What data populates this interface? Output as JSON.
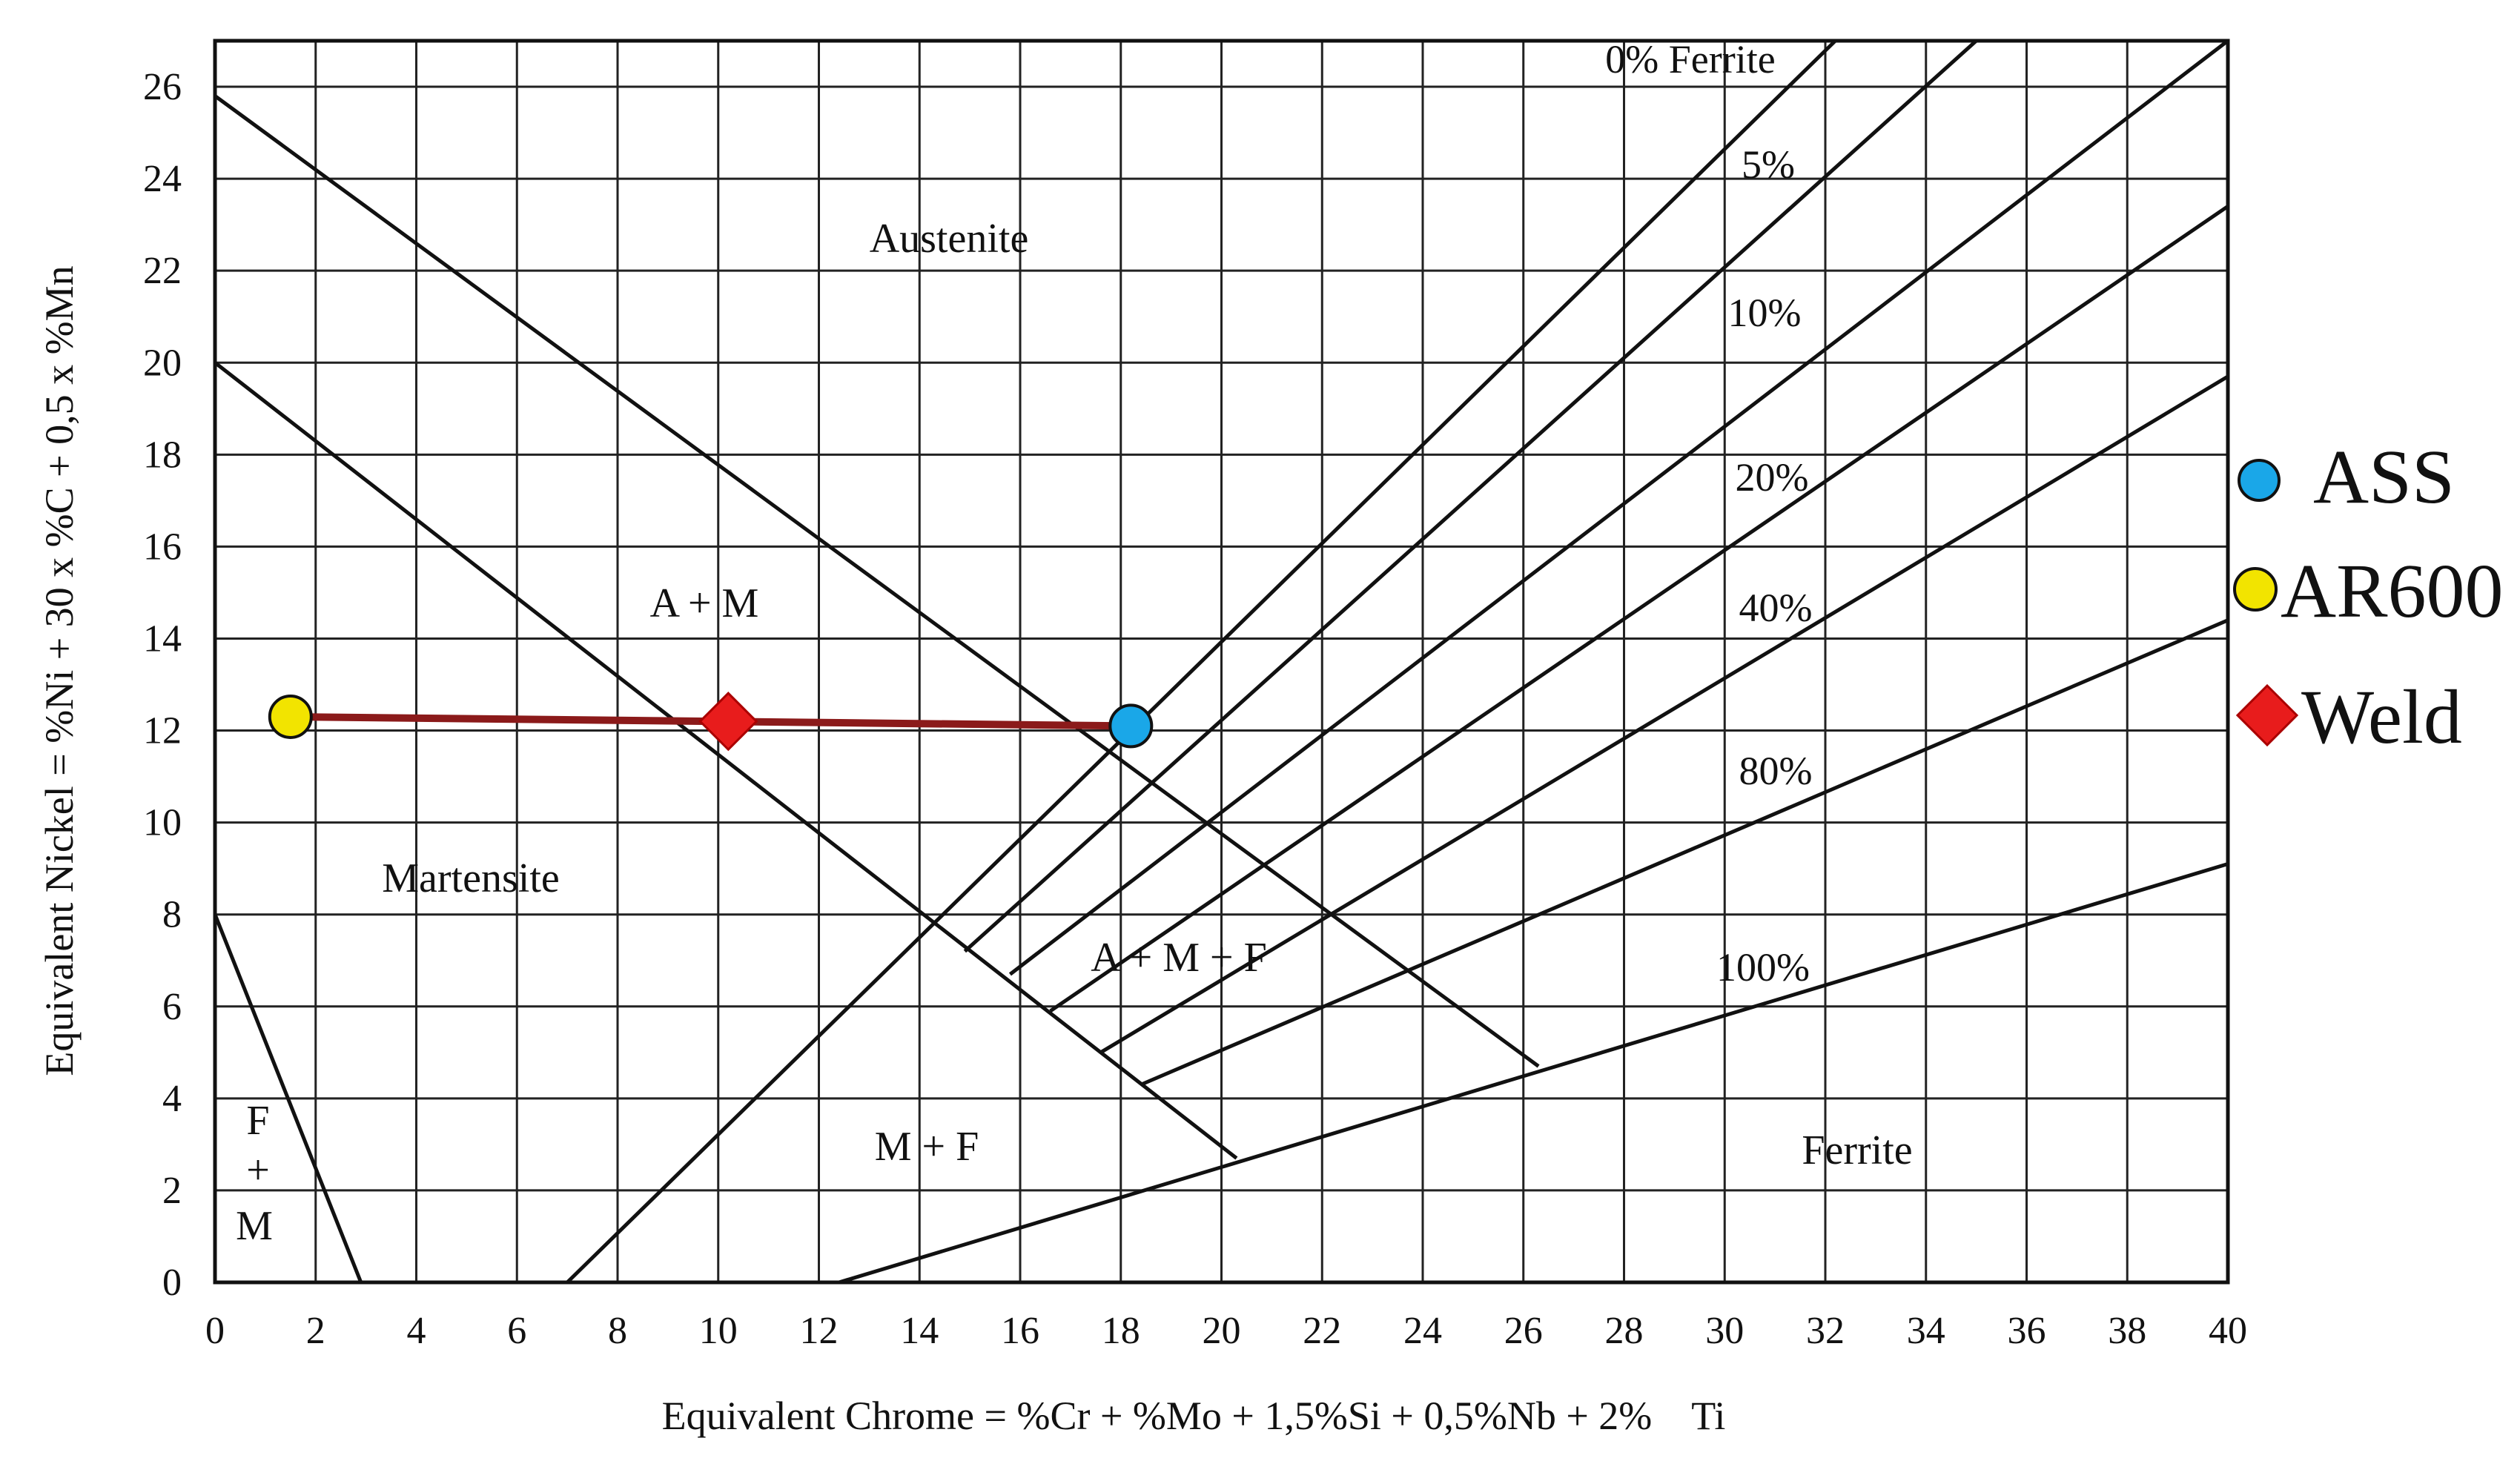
{
  "chart_data": {
    "type": "scatter",
    "title": "",
    "xlabel": "Equivalent Chrome = %Cr + %Mo + 1,5%Si + 0,5%Nb + 2%    Ti",
    "ylabel": "Equivalent Nickel = %Ni + 30 x %C + 0,5 x %Mn",
    "xlim": [
      0,
      40
    ],
    "ylim": [
      0,
      27
    ],
    "x_ticks": [
      0,
      2,
      4,
      6,
      8,
      10,
      12,
      14,
      16,
      18,
      20,
      22,
      24,
      26,
      28,
      30,
      32,
      34,
      36,
      38,
      40
    ],
    "y_ticks": [
      0,
      2,
      4,
      6,
      8,
      10,
      12,
      14,
      16,
      18,
      20,
      22,
      24,
      26
    ],
    "grid": true,
    "legend_position": "right",
    "boundaries": [
      {
        "from": [
          0,
          25.8
        ],
        "to": [
          26.3,
          4.7
        ]
      },
      {
        "from": [
          0,
          20
        ],
        "to": [
          20.3,
          2.7
        ]
      },
      {
        "from": [
          0,
          8
        ],
        "to": [
          2.9,
          0
        ]
      },
      {
        "from": [
          7,
          0
        ],
        "to": [
          32.2,
          27
        ]
      },
      {
        "from": [
          12.4,
          0
        ],
        "to": [
          40,
          9.1
        ]
      },
      {
        "from": [
          14.9,
          7.2
        ],
        "to": [
          35,
          27
        ]
      },
      {
        "from": [
          15.8,
          6.7
        ],
        "to": [
          40,
          27
        ]
      },
      {
        "from": [
          16.6,
          5.9
        ],
        "to": [
          40,
          23.4
        ]
      },
      {
        "from": [
          17.6,
          5
        ],
        "to": [
          40,
          19.7
        ]
      },
      {
        "from": [
          18.4,
          4.3
        ],
        "to": [
          40,
          14.4
        ]
      }
    ],
    "regions": [
      "Austenite",
      "A + M",
      "Martensite",
      "A + M + F",
      "M + F",
      "Ferrite",
      "F",
      "+",
      "M"
    ],
    "ferrite_lines": [
      "0% Ferrite",
      "5%",
      "10%",
      "20%",
      "40%",
      "80%",
      "100%"
    ],
    "tie_line": {
      "from": [
        1.5,
        12.3
      ],
      "to": [
        18.2,
        12.1
      ],
      "color": "#8b1a1a"
    },
    "series": [
      {
        "name": "ASS",
        "marker": "circle",
        "color": "#1aa7e8",
        "points": [
          [
            18.2,
            12.1
          ]
        ]
      },
      {
        "name": "AR600",
        "marker": "circle",
        "color": "#f2e400",
        "points": [
          [
            1.5,
            12.3
          ]
        ]
      },
      {
        "name": "Weld",
        "marker": "diamond",
        "color": "#e81c1c",
        "points": [
          [
            10.2,
            12.2
          ]
        ]
      }
    ]
  }
}
